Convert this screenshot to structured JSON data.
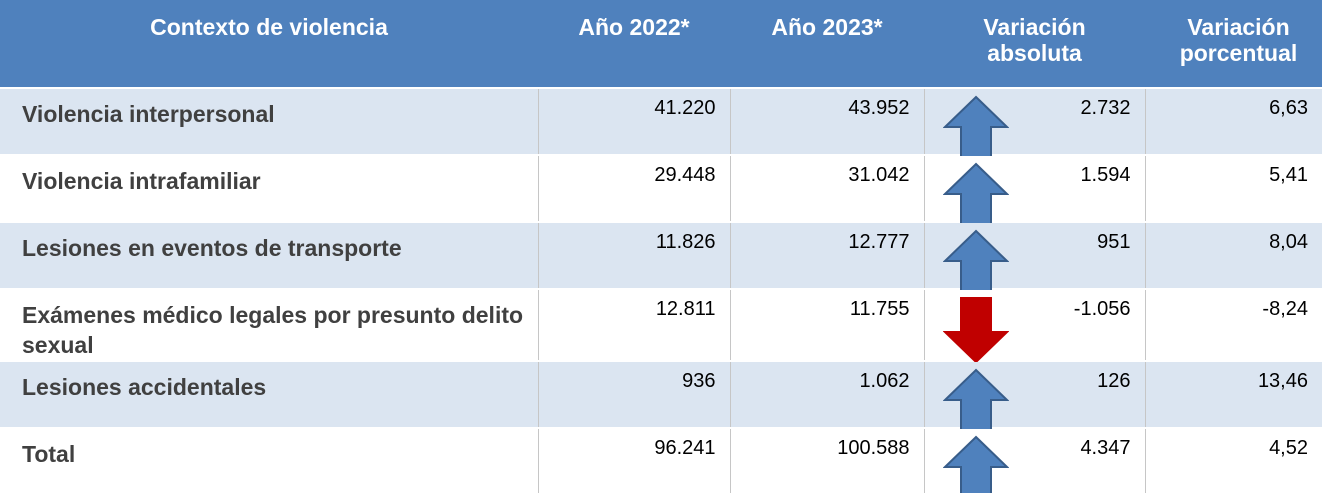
{
  "table": {
    "header": [
      "Contexto de violencia",
      "Año 2022*",
      "Año 2023*",
      "Variación absoluta",
      "Variación porcentual"
    ],
    "rows": [
      [
        "Violencia interpersonal",
        "41.220",
        "43.952",
        "2.732",
        "6,63"
      ],
      [
        "Violencia intrafamiliar",
        "29.448",
        "31.042",
        "1.594",
        "5,41"
      ],
      [
        "Lesiones en eventos de transporte",
        "11.826",
        "12.777",
        "951",
        "8,04"
      ],
      [
        "Exámenes médico legales por presunto delito sexual",
        "12.811",
        "11.755",
        "-1.056",
        "-8,24"
      ],
      [
        "Lesiones accidentales",
        "936",
        "1.062",
        "126",
        "13,46"
      ],
      [
        "Total",
        "96.241",
        "100.588",
        "4.347",
        "4,52"
      ]
    ]
  }
}
